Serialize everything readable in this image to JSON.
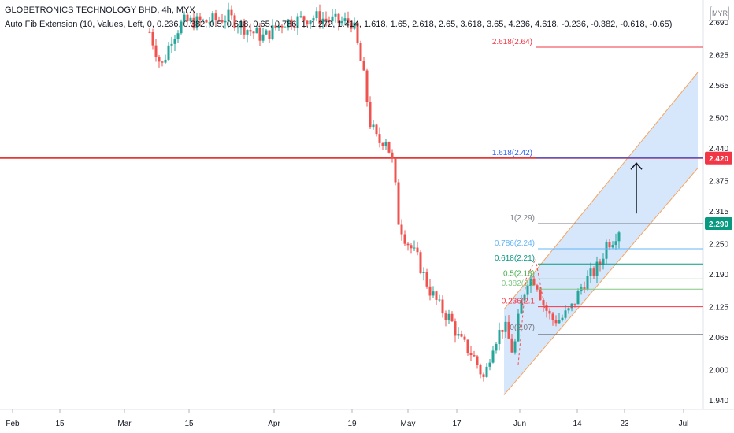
{
  "header": {
    "title": "GLOBETRONICS TECHNOLOGY BHD, 4h, MYX",
    "indicator": "Auto Fib Extension (10, Values, Left, 0, 0.236, 0.382, 0.5, 0.618, 0.65, 0.786, 1, 1.272, 1.414, 1.618, 1.65, 2.618, 2.65, 3.618, 3.65, 4.236, 4.618, -0.236, -0.382, -0.618, -0.65)",
    "currency": "MYR"
  },
  "chart_data": {
    "type": "candlestick",
    "symbol": "GLOBETRONICS TECHNOLOGY BHD",
    "interval": "4h",
    "exchange": "MYX",
    "y_ticks": [
      "2.690",
      "2.625",
      "2.565",
      "2.500",
      "2.440",
      "2.375",
      "2.315",
      "2.250",
      "2.190",
      "2.125",
      "2.065",
      "2.000",
      "1.940"
    ],
    "ylim": [
      1.94,
      2.69
    ],
    "x_ticks": [
      "Feb",
      "15",
      "Mar",
      "15",
      "Apr",
      "19",
      "May",
      "17",
      "Jun",
      "14",
      "23",
      "Jul"
    ],
    "price_badges": [
      {
        "value": "2.420",
        "color": "#f23645"
      },
      {
        "value": "2.290",
        "color": "#089981"
      }
    ],
    "fib_levels": [
      {
        "label": "0.236(2.1",
        "value": 2.125,
        "color": "#f23645"
      },
      {
        "label": "0.382(2.1",
        "value": 2.16,
        "color": "#81c784"
      },
      {
        "label": "0.5(2.18)",
        "value": 2.18,
        "color": "#4caf50"
      },
      {
        "label": "0.618(2.21)",
        "value": 2.21,
        "color": "#089981"
      },
      {
        "label": "0.786(2.24)",
        "value": 2.24,
        "color": "#64b5f6"
      },
      {
        "label": "1(2.29)",
        "value": 2.29,
        "color": "#787b86"
      },
      {
        "label": "1.618(2.42)",
        "value": 2.42,
        "color": "#2962ff"
      },
      {
        "label": "2.618(2.64)",
        "value": 2.64,
        "color": "#f23645"
      }
    ],
    "fib_base_label": "0(2.07)",
    "fib_base_value": 2.07,
    "resistance_line": 2.42,
    "colors": {
      "up": "#26a69a",
      "down": "#ef5350",
      "channel": "#f7a35c",
      "channel_fill": "#cfe3fb"
    }
  }
}
